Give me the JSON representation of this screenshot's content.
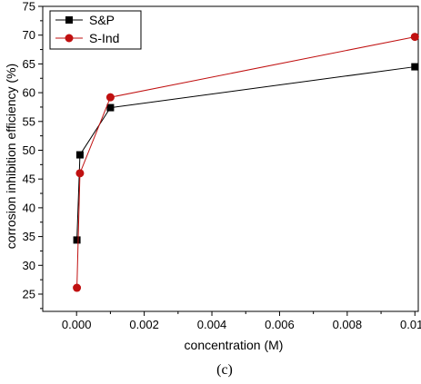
{
  "chart_data": {
    "type": "line",
    "title": "",
    "xlabel": "concentration (M)",
    "ylabel": "corrosion inhibition efficiency (%)",
    "xlim": [
      -0.001,
      0.0101
    ],
    "ylim": [
      22,
      75
    ],
    "x_ticks": [
      "0.000",
      "0.002",
      "0.004",
      "0.006",
      "0.008",
      "0.010"
    ],
    "y_ticks": [
      "25",
      "30",
      "35",
      "40",
      "45",
      "50",
      "55",
      "60",
      "65",
      "70",
      "75"
    ],
    "grid": false,
    "legend_position": "top-left",
    "series": [
      {
        "name": "S&P",
        "marker": "square",
        "color": "#000000",
        "x": [
          1e-05,
          0.0001,
          0.001,
          0.01
        ],
        "y": [
          34.4,
          49.2,
          57.4,
          64.5
        ]
      },
      {
        "name": "S-Ind",
        "marker": "circle",
        "color": "#c01010",
        "x": [
          1e-05,
          0.0001,
          0.001,
          0.01
        ],
        "y": [
          26.1,
          46.0,
          59.2,
          69.7
        ]
      }
    ],
    "caption": "(c)"
  }
}
